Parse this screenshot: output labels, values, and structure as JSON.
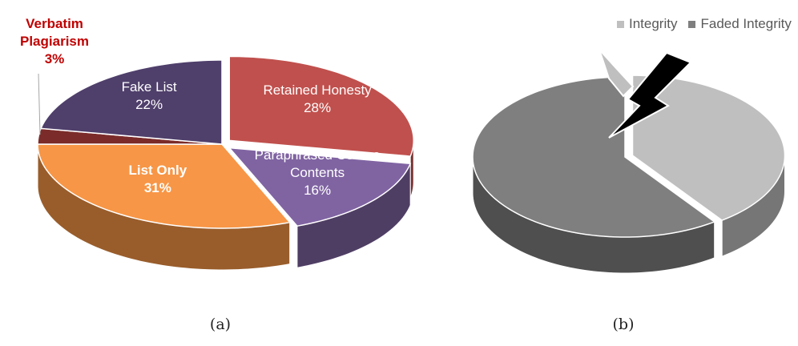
{
  "chart_data": [
    {
      "type": "pie",
      "categories": [
        "Retained Honesty",
        "Paraphrased Course Contents",
        "List Only",
        "Verbatim Plagiarism",
        "Fake List"
      ],
      "values": [
        28,
        16,
        31,
        3,
        22
      ],
      "value_labels": [
        "28%",
        "16%",
        "31%",
        "3%",
        "22%"
      ],
      "colors": [
        "#c0504d",
        "#8064a2",
        "#f79646",
        "#7b2c2a",
        "#4f3f6b"
      ],
      "caption": "(a)"
    },
    {
      "type": "pie",
      "categories": [
        "Integrity",
        "Faded Integrity"
      ],
      "values": [
        40,
        60
      ],
      "colors": [
        "#bfbfbf",
        "#7f7f7f"
      ],
      "legend": "top-right",
      "caption": "(b)"
    }
  ]
}
